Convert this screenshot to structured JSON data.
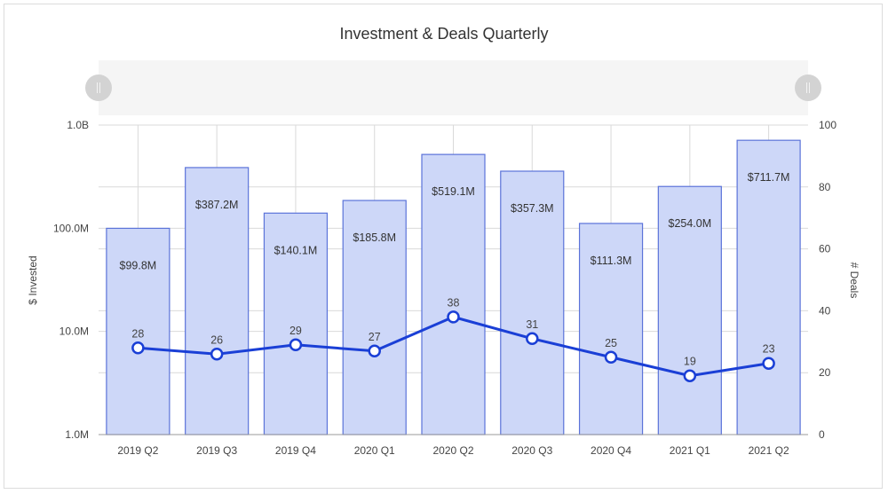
{
  "chart_data": {
    "type": "bar+line",
    "title": "Investment & Deals Quarterly",
    "categories": [
      "2019 Q2",
      "2019 Q3",
      "2019 Q4",
      "2020 Q1",
      "2020 Q2",
      "2020 Q3",
      "2020 Q4",
      "2021 Q1",
      "2021 Q2"
    ],
    "series": [
      {
        "name": "$ Invested",
        "type": "bar",
        "axis": "left",
        "scale": "log",
        "values": [
          99800000,
          387200000,
          140100000,
          185800000,
          519100000,
          357300000,
          111300000,
          254000000,
          711700000
        ],
        "labels": [
          "$99.8M",
          "$387.2M",
          "$140.1M",
          "$185.8M",
          "$519.1M",
          "$357.3M",
          "$111.3M",
          "$254.0M",
          "$711.7M"
        ],
        "color": "#cdd7f8",
        "border_color": "#5b73d9"
      },
      {
        "name": "# Deals",
        "type": "line",
        "axis": "right",
        "values": [
          28,
          26,
          29,
          27,
          38,
          31,
          25,
          19,
          23
        ],
        "color": "#1a3fd6"
      }
    ],
    "ylabel": "$ Invested",
    "y2label": "# Deals",
    "xlabel": "",
    "y_ticks": [
      "1.0M",
      "10.0M",
      "100.0M",
      "1.0B"
    ],
    "ylim": [
      1000000,
      1000000000
    ],
    "y2_ticks": [
      "0",
      "20",
      "40",
      "60",
      "80",
      "100"
    ],
    "y2lim": [
      0,
      100
    ],
    "grid": true,
    "legend": "none"
  },
  "navigator": {
    "left_handle": "navigator-left-handle",
    "right_handle": "navigator-right-handle"
  }
}
